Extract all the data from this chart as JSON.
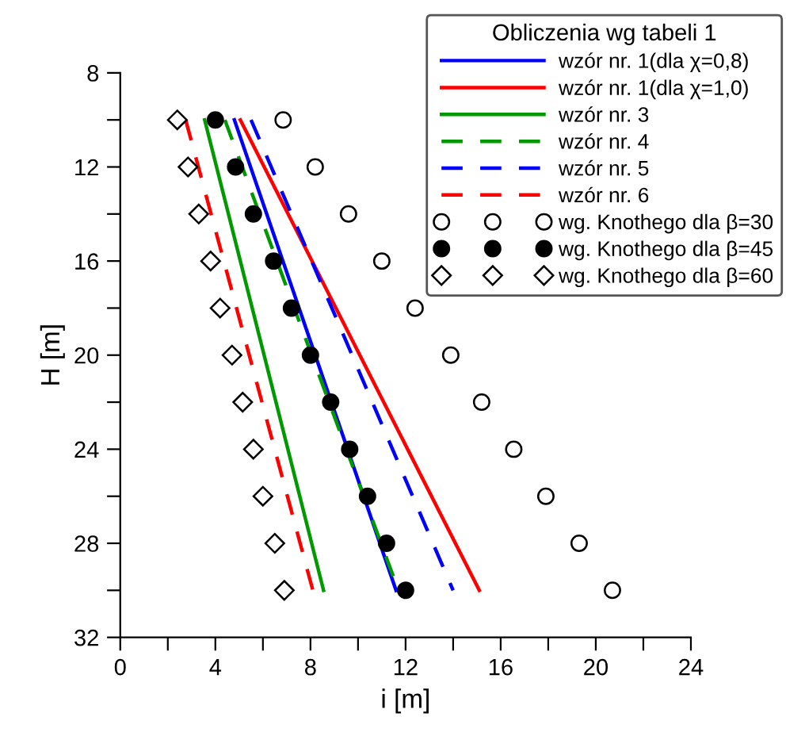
{
  "chart_data": {
    "type": "line",
    "xlabel": "i [m]",
    "ylabel": "H [m]",
    "legend_title": "Obliczenia wg tabeli 1",
    "legend": "top right",
    "grid": false,
    "xlim": [
      0,
      24
    ],
    "xticks": [
      0,
      {
        "value": 2,
        "label": null
      },
      4,
      {
        "value": 6,
        "label": null
      },
      8,
      {
        "value": 10,
        "label": null
      },
      12,
      {
        "value": 14,
        "label": null
      },
      16,
      {
        "value": 18,
        "label": null
      },
      20,
      {
        "value": 22,
        "label": null
      },
      24
    ],
    "ylim": [
      32,
      8
    ],
    "yticks": [
      8,
      {
        "value": 10,
        "label": null
      },
      12,
      {
        "value": 14,
        "label": null
      },
      16,
      {
        "value": 18,
        "label": null
      },
      20,
      {
        "value": 22,
        "label": null
      },
      24,
      {
        "value": 26,
        "label": null
      },
      28,
      {
        "value": 30,
        "label": null
      },
      32
    ],
    "series": [
      {
        "name": "wzór nr. 1(dla χ=0,8)",
        "line_style": "solid",
        "color": "#0000ff",
        "x": [
          4.8,
          11.6
        ],
        "values": [
          10,
          30
        ]
      },
      {
        "name": "wzór nr. 1(dla χ=1,0)",
        "line_style": "solid",
        "color": "#ff0000",
        "x": [
          5.05,
          15.1
        ],
        "values": [
          10,
          30
        ]
      },
      {
        "name": "wzór nr. 3",
        "line_style": "solid",
        "color": "#009900",
        "x": [
          3.55,
          8.55
        ],
        "values": [
          10,
          30
        ]
      },
      {
        "name": "wzór nr. 4",
        "line_style": "dashed",
        "color": "#009900",
        "x": [
          4.4,
          11.7
        ],
        "values": [
          10,
          30
        ]
      },
      {
        "name": "wzór nr. 5",
        "line_style": "dashed",
        "color": "#0000ff",
        "x": [
          5.5,
          14.0
        ],
        "values": [
          10,
          30
        ]
      },
      {
        "name": "wzór nr. 6",
        "line_style": "dashed",
        "color": "#ff0000",
        "x": [
          2.75,
          8.1
        ],
        "values": [
          10,
          30
        ]
      },
      {
        "name": "wg. Knothego dla β=30",
        "type": "scatter",
        "marker": "circle",
        "color": "#ffffff",
        "x": [
          6.85,
          8.2,
          9.6,
          11.0,
          12.4,
          13.9,
          15.2,
          16.55,
          17.9,
          19.3,
          20.7
        ],
        "values": [
          10,
          12,
          14,
          16,
          18,
          20,
          22,
          24,
          26,
          28,
          30
        ]
      },
      {
        "name": "wg. Knothego dla β=45",
        "type": "scatter",
        "marker": "circle",
        "color": "#000000",
        "x": [
          4.0,
          4.85,
          5.6,
          6.45,
          7.2,
          8.0,
          8.85,
          9.65,
          10.4,
          11.2,
          12.0
        ],
        "values": [
          10,
          12,
          14,
          16,
          18,
          20,
          22,
          24,
          26,
          28,
          30
        ]
      },
      {
        "name": "wg. Knothego dla β=60",
        "type": "scatter",
        "marker": "diamond",
        "color": "#ffffff",
        "x": [
          2.4,
          2.85,
          3.3,
          3.8,
          4.2,
          4.7,
          5.15,
          5.6,
          6.0,
          6.5,
          6.9
        ],
        "values": [
          10,
          12,
          14,
          16,
          18,
          20,
          22,
          24,
          26,
          28,
          30
        ]
      }
    ]
  }
}
